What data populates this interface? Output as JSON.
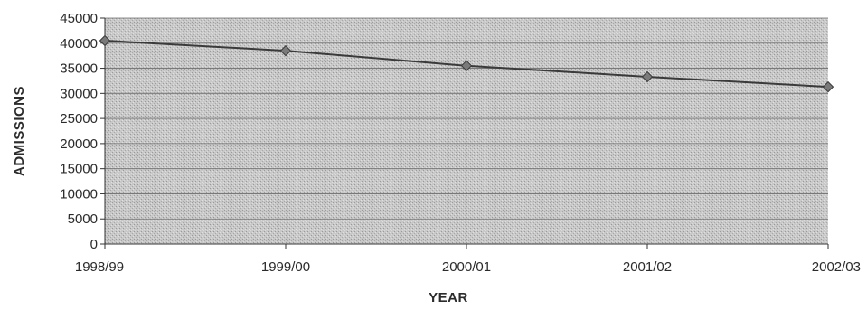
{
  "chart_data": {
    "type": "line",
    "categories": [
      "1998/99",
      "1999/00",
      "2000/01",
      "2001/02",
      "2002/03"
    ],
    "series": [
      {
        "values": [
          40500,
          38500,
          35500,
          33300,
          31300
        ]
      }
    ],
    "xlabel": "YEAR",
    "ylabel": "ADMISSIONS",
    "ylim": [
      0,
      45000
    ],
    "yticks": [
      0,
      5000,
      10000,
      15000,
      20000,
      25000,
      30000,
      35000,
      40000,
      45000
    ],
    "grid": true,
    "legend": "none",
    "colors": {
      "plot_background": "#c4c4c4",
      "gridline": "#6e6e6e",
      "line": "#3a3a3a",
      "marker": "#7a7a7a"
    }
  }
}
